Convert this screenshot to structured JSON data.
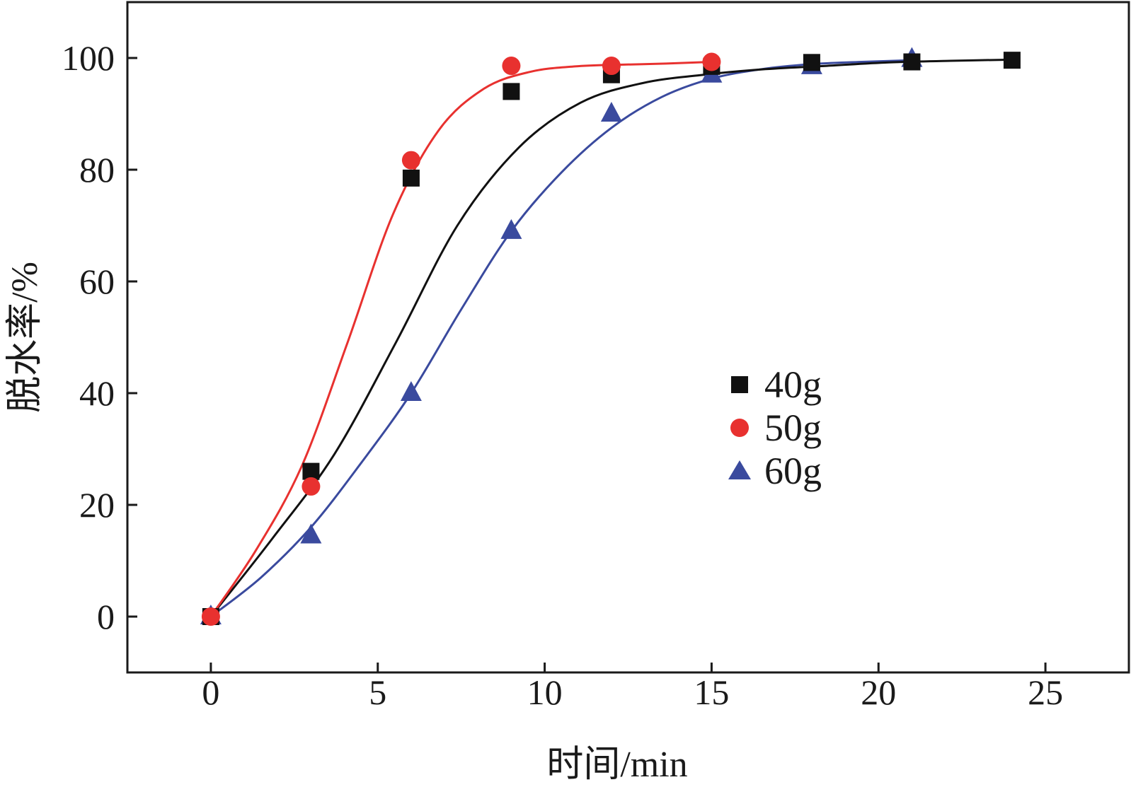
{
  "chart_data": {
    "type": "scatter",
    "xlabel": "时间/min",
    "ylabel": "脱水率/%",
    "xlim": [
      -2.5,
      27.5
    ],
    "ylim": [
      -10,
      110
    ],
    "xticks": [
      0,
      5,
      10,
      15,
      20,
      25
    ],
    "yticks": [
      0,
      20,
      40,
      60,
      80,
      100
    ],
    "grid": false,
    "legend_position": "center-right",
    "series": [
      {
        "name": "40g",
        "marker": "square",
        "color": "#111111",
        "x": [
          0,
          3,
          6,
          9,
          12,
          15,
          18,
          21,
          24
        ],
        "y": [
          0,
          26,
          78.5,
          94,
          97,
          98.5,
          99.2,
          99.3,
          99.6
        ],
        "fit_y": [
          0,
          14,
          29,
          49,
          70,
          84,
          92,
          95.5,
          97,
          98,
          98.6,
          99.2,
          99.5,
          99.7
        ]
      },
      {
        "name": "50g",
        "marker": "circle",
        "color": "#e8312f",
        "x": [
          0,
          3,
          6,
          9,
          12,
          15
        ],
        "y": [
          0,
          23.3,
          81.7,
          98.6,
          98.6,
          99.3
        ],
        "fit_y": [
          0,
          12,
          27,
          49,
          72,
          87,
          94.5,
          97.5,
          98.5,
          98.8,
          99,
          99.3
        ]
      },
      {
        "name": "60g",
        "marker": "triangle",
        "color": "#3a4a9e",
        "x": [
          0,
          3,
          6,
          9,
          12,
          15,
          18,
          21
        ],
        "y": [
          0,
          14.5,
          40,
          69,
          90,
          97,
          98.5,
          99.8
        ],
        "fit_y": [
          0,
          7,
          16,
          27.5,
          40,
          55,
          69,
          79.5,
          87.5,
          93,
          96.3,
          98,
          98.9,
          99.3,
          99.6
        ]
      }
    ]
  }
}
